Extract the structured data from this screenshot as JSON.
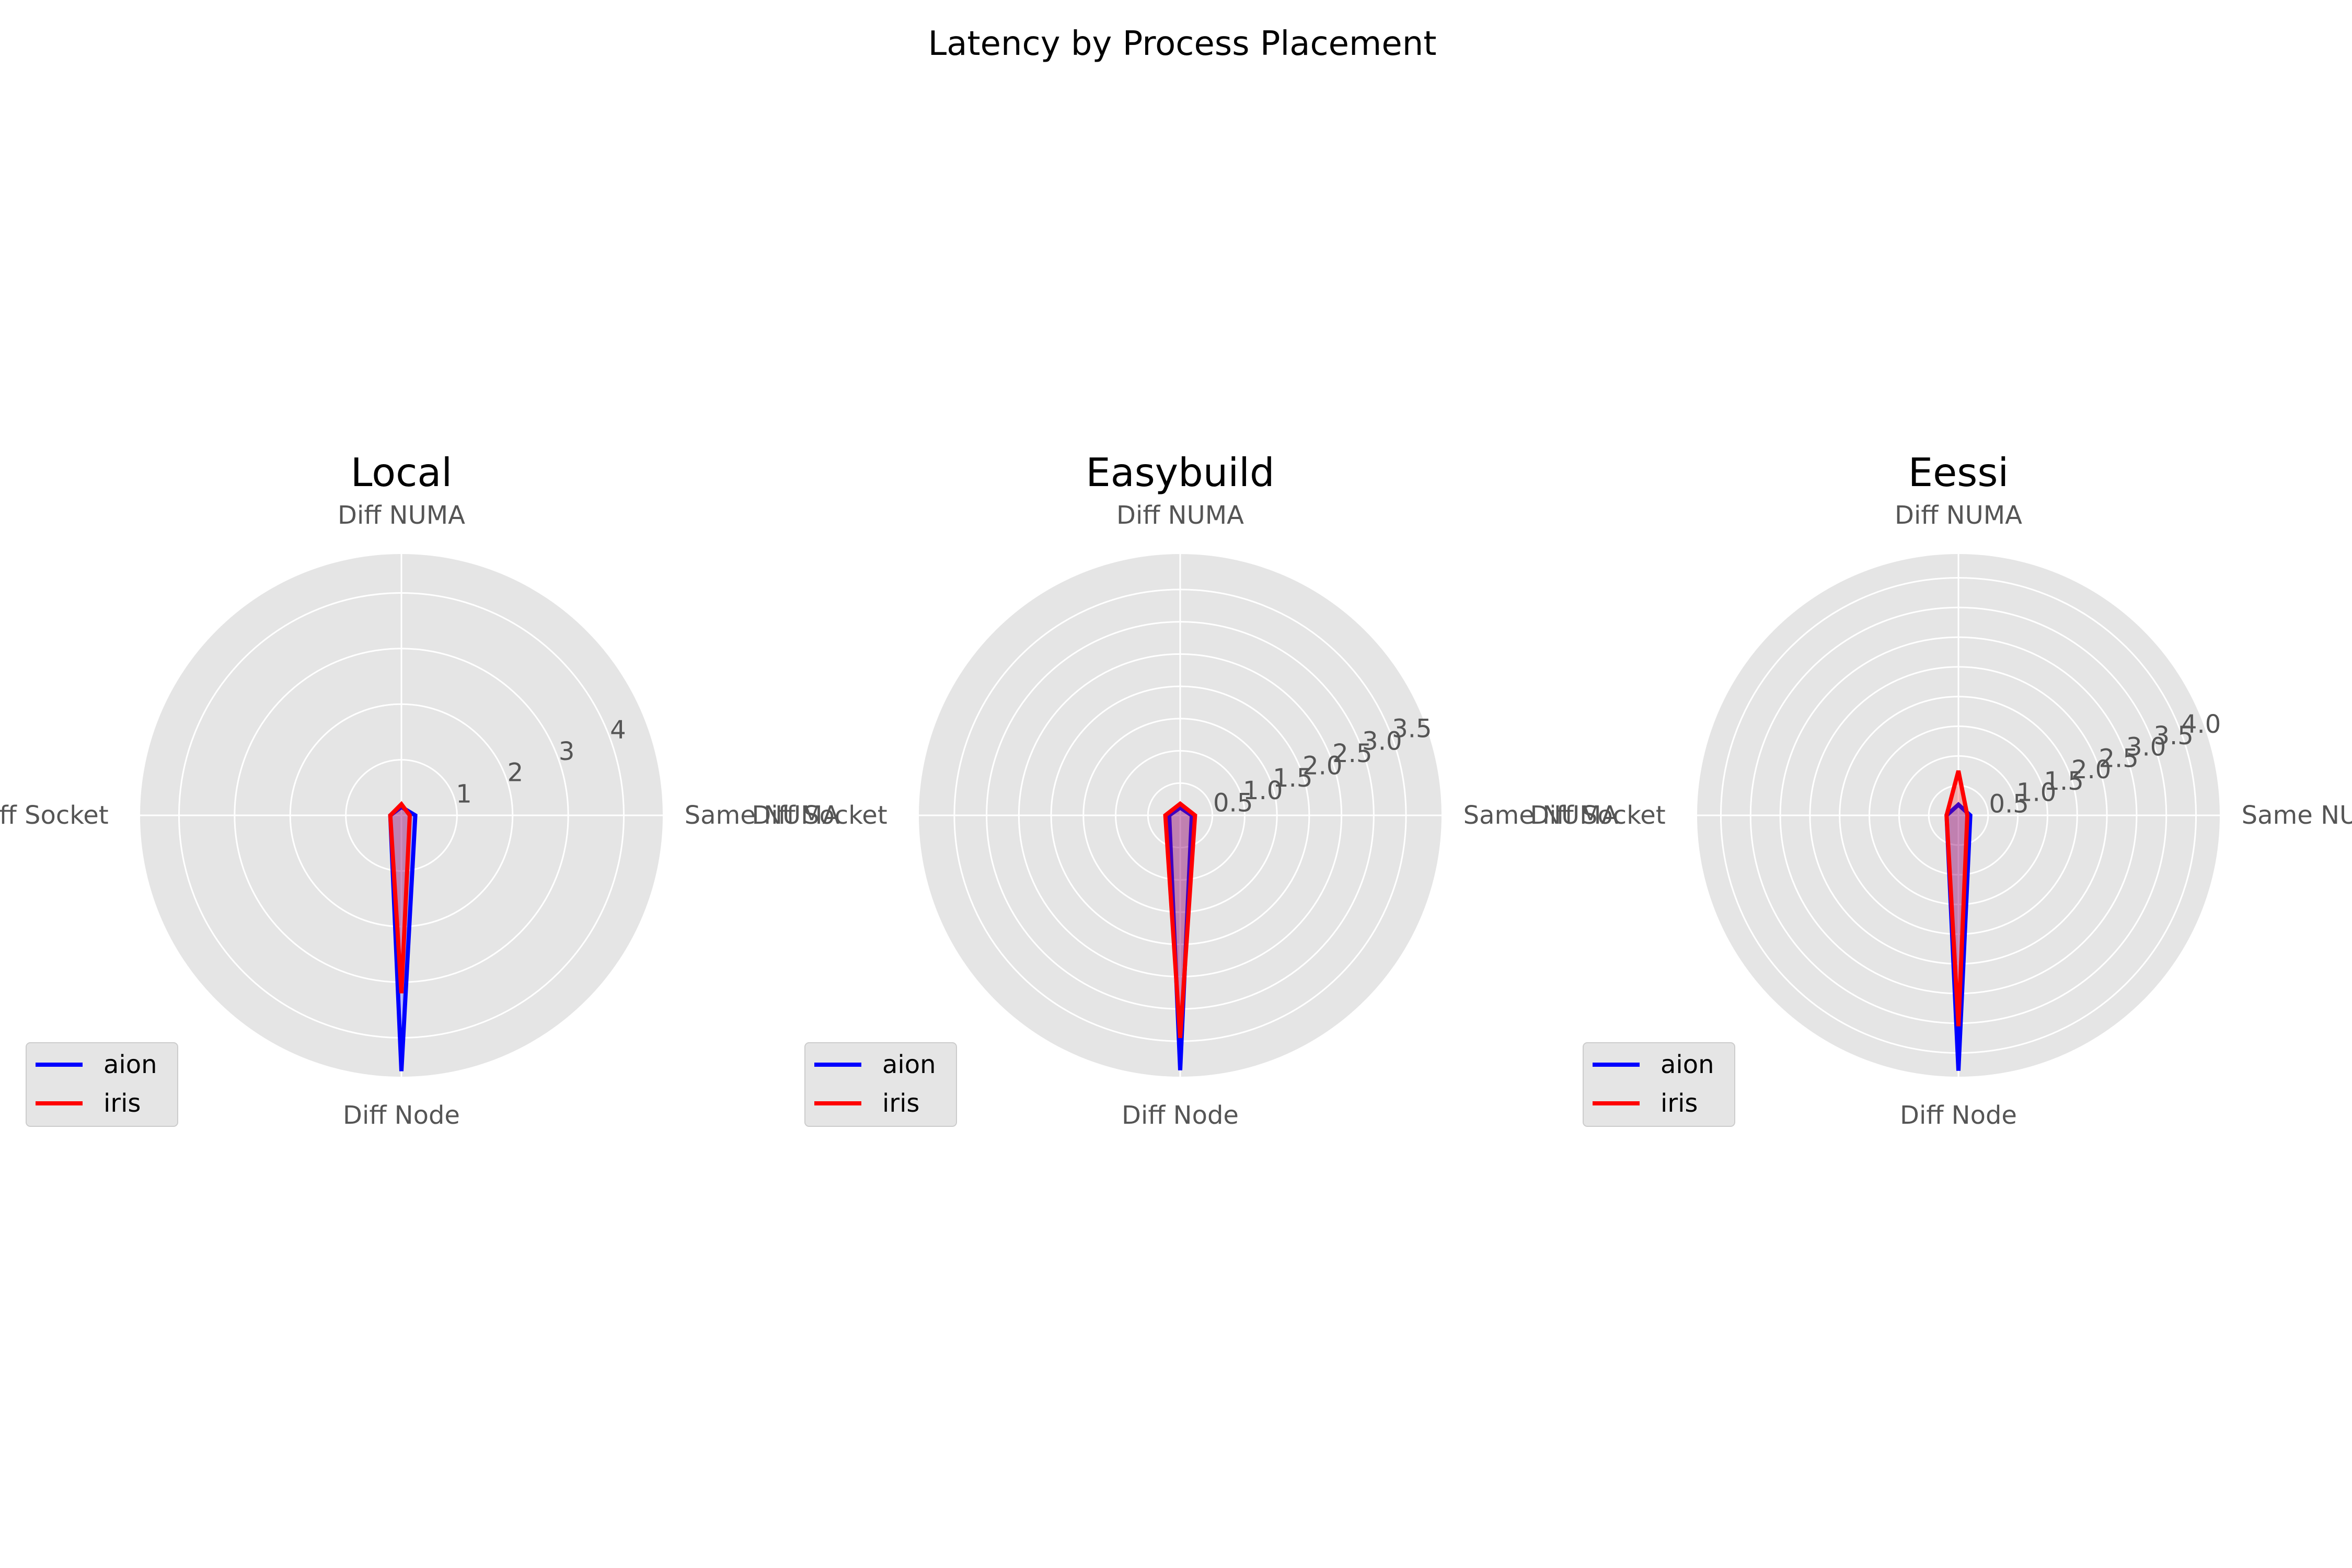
{
  "title": "Latency by Process Placement",
  "chart_data": [
    {
      "type": "radar",
      "title": "Local",
      "categories": [
        "Same NUMA",
        "Diff NUMA",
        "Diff Socket",
        "Diff Node"
      ],
      "rlim": [
        0,
        4.7
      ],
      "rticks": [
        "1",
        "2",
        "3",
        "4"
      ],
      "rtick_values": [
        1,
        2,
        3,
        4
      ],
      "grid": true,
      "legend": "lower-left",
      "series": [
        {
          "name": "aion",
          "color": "#0000ff",
          "values": [
            0.25,
            0.15,
            0.2,
            4.6
          ]
        },
        {
          "name": "iris",
          "color": "#ff0000",
          "values": [
            0.15,
            0.2,
            0.2,
            3.2
          ]
        }
      ]
    },
    {
      "type": "radar",
      "title": "Easybuild",
      "categories": [
        "Same NUMA",
        "Diff NUMA",
        "Diff Socket",
        "Diff Node"
      ],
      "rlim": [
        0,
        4.05
      ],
      "rticks": [
        "0.5",
        "1.0",
        "1.5",
        "2.0",
        "2.5",
        "3.0",
        "3.5"
      ],
      "rtick_values": [
        0.5,
        1.0,
        1.5,
        2.0,
        2.5,
        3.0,
        3.5
      ],
      "grid": true,
      "legend": "lower-left",
      "series": [
        {
          "name": "aion",
          "color": "#0000ff",
          "values": [
            0.18,
            0.12,
            0.17,
            3.95
          ]
        },
        {
          "name": "iris",
          "color": "#ff0000",
          "values": [
            0.23,
            0.18,
            0.23,
            3.45
          ]
        }
      ]
    },
    {
      "type": "radar",
      "title": "Eessi",
      "categories": [
        "Same NUMA",
        "Diff NUMA",
        "Diff Socket",
        "Diff Node"
      ],
      "rlim": [
        0,
        4.4
      ],
      "rticks": [
        "0.5",
        "1.0",
        "1.5",
        "2.0",
        "2.5",
        "3.0",
        "3.5",
        "4.0"
      ],
      "rtick_values": [
        0.5,
        1.0,
        1.5,
        2.0,
        2.5,
        3.0,
        3.5,
        4.0
      ],
      "grid": true,
      "legend": "lower-left",
      "series": [
        {
          "name": "aion",
          "color": "#0000ff",
          "values": [
            0.2,
            0.18,
            0.2,
            4.3
          ]
        },
        {
          "name": "iris",
          "color": "#ff0000",
          "values": [
            0.15,
            0.75,
            0.2,
            3.55
          ]
        }
      ]
    }
  ]
}
